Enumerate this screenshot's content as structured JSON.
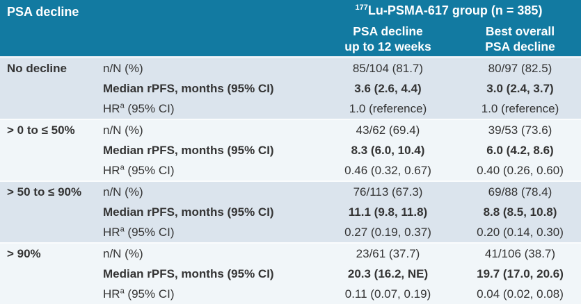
{
  "colors": {
    "teal": "#127aa1",
    "stripe-dark": "#dbe4ed",
    "stripe-light": "#f1f6f9",
    "text": "#333333",
    "header-text": "#ffffff"
  },
  "table": {
    "header": {
      "col1_title": "PSA decline",
      "group_title_sup": "177",
      "group_title": "Lu-PSMA-617 group (n = 385)",
      "col3_line1": "PSA decline",
      "col3_line2": "up to 12 weeks",
      "col4_line1": "Best overall",
      "col4_line2": "PSA decline"
    },
    "metric_labels": {
      "n_n": "n/N (%)",
      "median": "Median rPFS, months (95% CI)",
      "hr_prefix": "HR",
      "hr_sup": "a",
      "hr_suffix": " (95% CI)"
    },
    "groups": [
      {
        "label": "No decline",
        "n_n": {
          "week12": "85/104 (81.7)",
          "best": "80/97 (82.5)"
        },
        "median": {
          "week12": "3.6 (2.6, 4.4)",
          "best": "3.0 (2.4, 3.7)"
        },
        "hr": {
          "week12": "1.0 (reference)",
          "best": "1.0 (reference)"
        }
      },
      {
        "label": "> 0 to ≤ 50%",
        "n_n": {
          "week12": "43/62 (69.4)",
          "best": "39/53 (73.6)"
        },
        "median": {
          "week12": "8.3 (6.0, 10.4)",
          "best": "6.0 (4.2, 8.6)"
        },
        "hr": {
          "week12": "0.46 (0.32, 0.67)",
          "best": "0.40 (0.26, 0.60)"
        }
      },
      {
        "label": "> 50 to ≤ 90%",
        "n_n": {
          "week12": "76/113 (67.3)",
          "best": "69/88 (78.4)"
        },
        "median": {
          "week12": "11.1 (9.8, 11.8)",
          "best": "8.8 (8.5, 10.8)"
        },
        "hr": {
          "week12": "0.27 (0.19, 0.37)",
          "best": "0.20 (0.14, 0.30)"
        }
      },
      {
        "label": "> 90%",
        "n_n": {
          "week12": "23/61 (37.7)",
          "best": "41/106 (38.7)"
        },
        "median": {
          "week12": "20.3 (16.2, NE)",
          "best": "19.7 (17.0, 20.6)"
        },
        "hr": {
          "week12": "0.11 (0.07, 0.19)",
          "best": "0.04 (0.02, 0.08)"
        }
      }
    ]
  }
}
